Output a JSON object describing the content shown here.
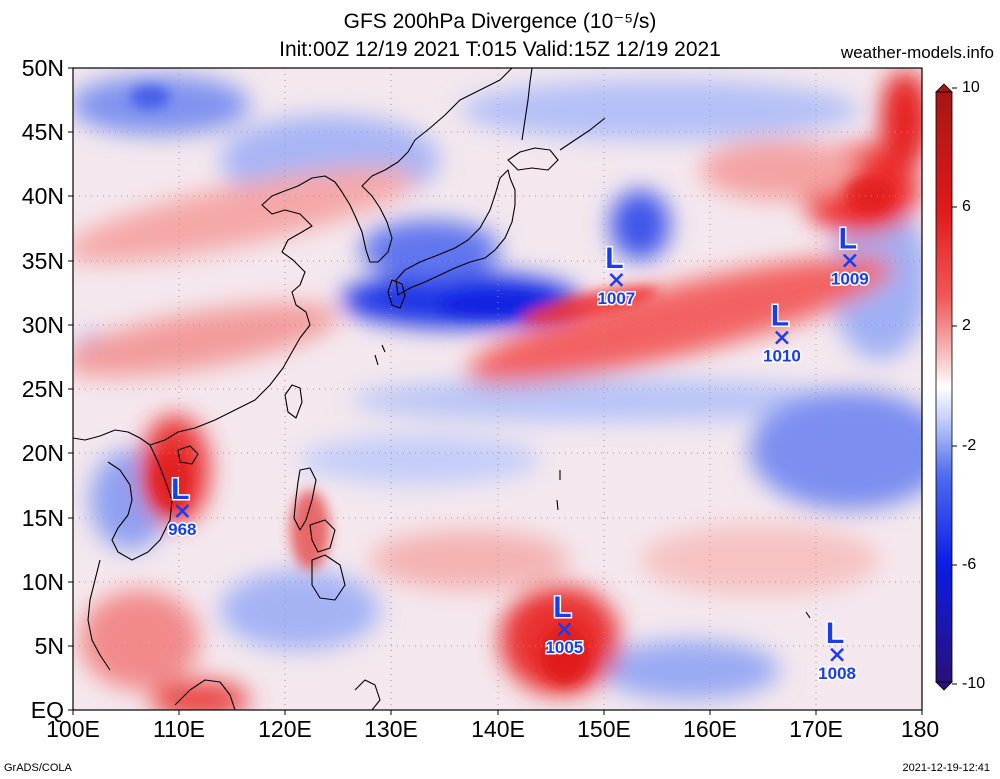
{
  "header": {
    "title_line1": "GFS 200hPa Divergence (10⁻⁵/s)",
    "title_line2": "Init:00Z 12/19 2021 T:015 Valid:15Z 12/19 2021",
    "site": "weather-models.info"
  },
  "axes": {
    "lat_labels": [
      "50N",
      "45N",
      "40N",
      "35N",
      "30N",
      "25N",
      "20N",
      "15N",
      "10N",
      "5N",
      "EQ"
    ],
    "lon_labels": [
      "100E",
      "110E",
      "120E",
      "130E",
      "140E",
      "150E",
      "160E",
      "170E",
      "180"
    ]
  },
  "colorbar": {
    "labels": [
      "10",
      "6",
      "2",
      "-2",
      "-6",
      "-10"
    ],
    "colors": [
      "#2a0f7a",
      "#0a1ee6",
      "#4f6bf0",
      "#c9d3fb",
      "#ffffff",
      "#f6c4c4",
      "#f05a5a",
      "#e01a1a",
      "#a51616"
    ]
  },
  "lows": [
    {
      "label": "L",
      "pressure": "968",
      "lon": 110.3,
      "lat": 15.5
    },
    {
      "label": "L",
      "pressure": "1007",
      "lon": 151.2,
      "lat": 33.5
    },
    {
      "label": "L",
      "pressure": "1010",
      "lon": 166.8,
      "lat": 29.0
    },
    {
      "label": "L",
      "pressure": "1009",
      "lon": 173.2,
      "lat": 35.0
    },
    {
      "label": "L",
      "pressure": "1005",
      "lon": 146.3,
      "lat": 6.3
    },
    {
      "label": "L",
      "pressure": "1008",
      "lon": 172.0,
      "lat": 4.3
    }
  ],
  "footer": {
    "left": "GrADS/COLA",
    "right": "2021-12-19-12:41"
  }
}
